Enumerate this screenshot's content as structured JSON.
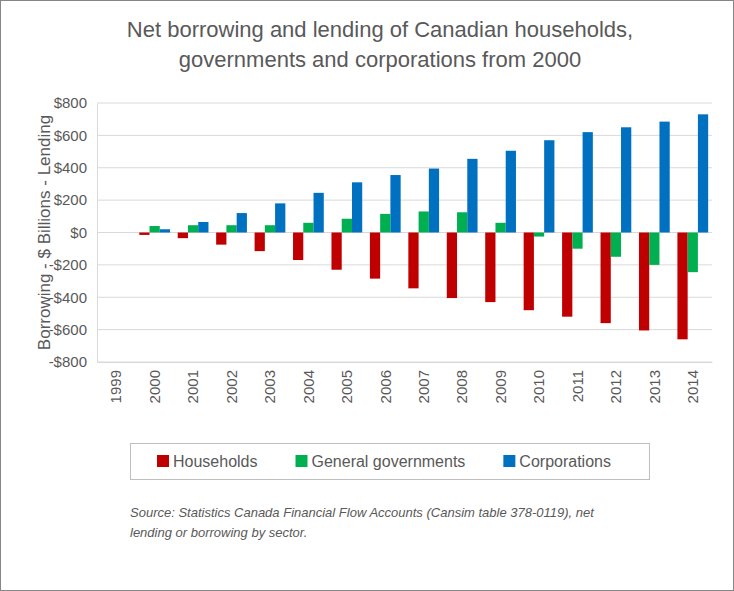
{
  "chart_data": {
    "type": "bar",
    "title": [
      "Net borrowing and lending of Canadian households,",
      "governments and corporations from 2000"
    ],
    "y_label": "Borrowing - $ Billions - Lending",
    "source": [
      "Source: Statistics Canada Financial Flow Accounts (Cansim table 378-0119), net",
      "lending or borrowing by sector."
    ],
    "categories": [
      "1999",
      "2000",
      "2001",
      "2002",
      "2003",
      "2004",
      "2005",
      "2006",
      "2007",
      "2008",
      "2009",
      "2010",
      "2011",
      "2012",
      "2013",
      "2014"
    ],
    "series": [
      {
        "name": "Households",
        "color": "#c00000",
        "values": [
          null,
          -15,
          -35,
          -75,
          -115,
          -170,
          -230,
          -285,
          -345,
          -405,
          -430,
          -480,
          -520,
          -560,
          -605,
          -660
        ]
      },
      {
        "name": "General governments",
        "color": "#00b050",
        "values": [
          null,
          40,
          45,
          45,
          45,
          60,
          85,
          115,
          130,
          125,
          60,
          -25,
          -100,
          -150,
          -200,
          -245
        ]
      },
      {
        "name": "Corporations",
        "color": "#0070c0",
        "values": [
          null,
          20,
          65,
          120,
          180,
          245,
          310,
          355,
          395,
          455,
          505,
          570,
          620,
          650,
          685,
          730
        ]
      }
    ],
    "ylim": [
      -800,
      800
    ],
    "yticks": [
      {
        "value": -800,
        "label": "-$800"
      },
      {
        "value": -600,
        "label": "-$600"
      },
      {
        "value": -400,
        "label": "-$400"
      },
      {
        "value": -200,
        "label": "-$200"
      },
      {
        "value": 0,
        "label": "$0"
      },
      {
        "value": 200,
        "label": "$200"
      },
      {
        "value": 400,
        "label": "$400"
      },
      {
        "value": 600,
        "label": "$600"
      },
      {
        "value": 800,
        "label": "$800"
      }
    ],
    "grid": true,
    "legend": "bottom"
  }
}
